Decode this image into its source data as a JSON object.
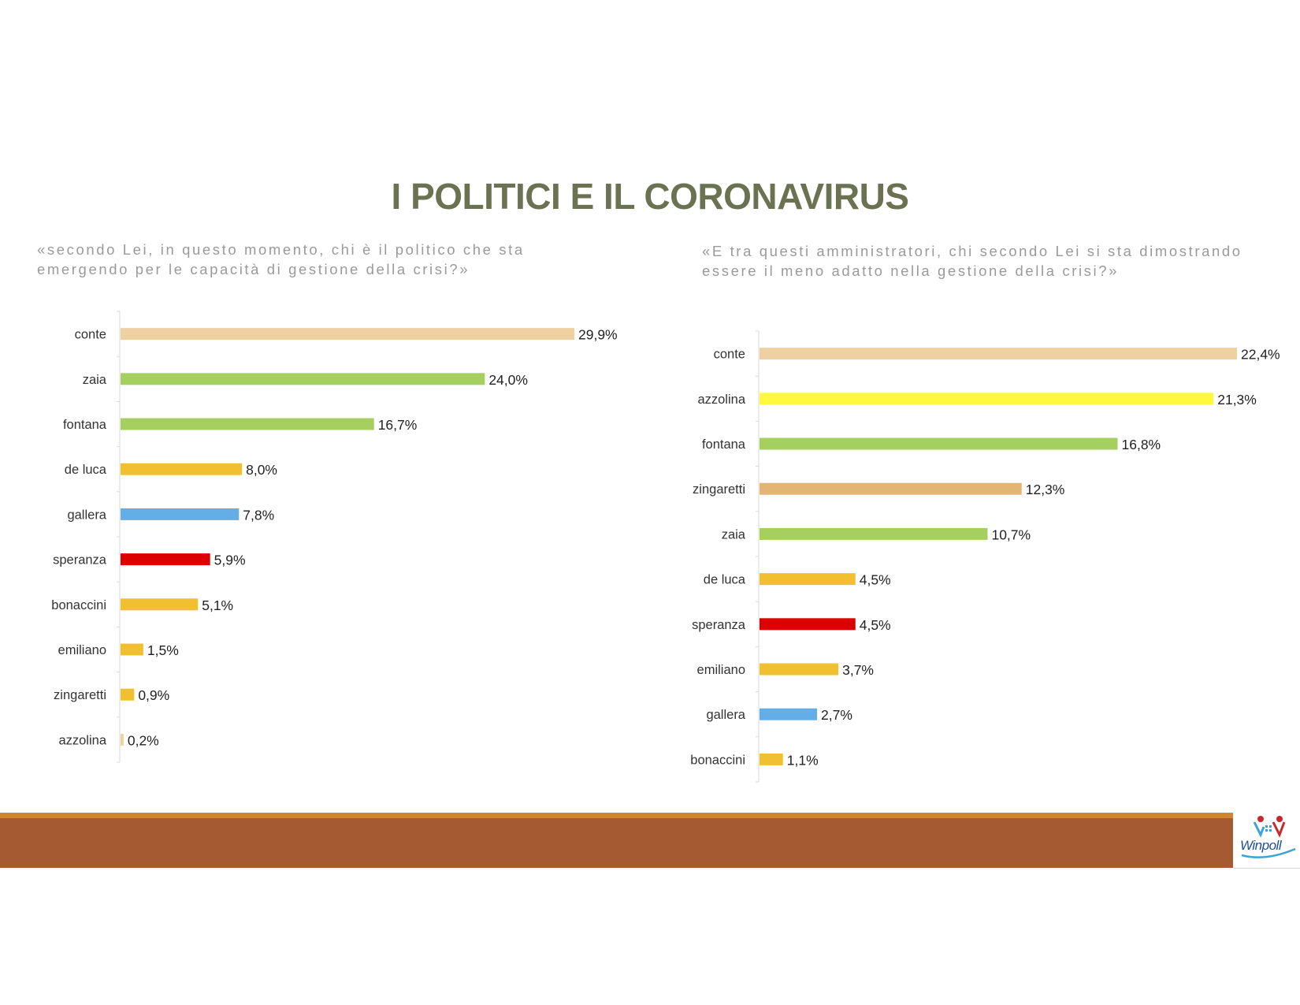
{
  "title": "I POLITICI E IL CORONAVIRUS",
  "logo": {
    "text": "Winpoll"
  },
  "chart_data": [
    {
      "type": "bar",
      "orientation": "horizontal",
      "question": "«secondo Lei, in questo momento, chi è il politico che sta emergendo per le capacità di gestione della crisi?»",
      "question_lines": [
        "«secondo Lei, in questo momento, chi è il politico che sta",
        "emergendo per le capacità di gestione della crisi?»"
      ],
      "categories": [
        "conte",
        "zaia",
        "fontana",
        "de luca",
        "gallera",
        "speranza",
        "bonaccini",
        "emiliano",
        "zingaretti",
        "azzolina"
      ],
      "values": [
        29.9,
        24.0,
        16.7,
        8.0,
        7.8,
        5.9,
        5.1,
        1.5,
        0.9,
        0.2
      ],
      "value_labels": [
        "29,9%",
        "24,0%",
        "16,7%",
        "8,0%",
        "7,8%",
        "5,9%",
        "5,1%",
        "1,5%",
        "0,9%",
        "0,2%"
      ],
      "colors": [
        "#efd0a2",
        "#a5cf5e",
        "#a5cf5e",
        "#f0c030",
        "#64aee8",
        "#dd0000",
        "#f0c030",
        "#f0c030",
        "#f0c030",
        "#efd0a2"
      ],
      "unit": "%",
      "xlim": [
        0,
        29.9
      ],
      "grid": false,
      "legend": "none"
    },
    {
      "type": "bar",
      "orientation": "horizontal",
      "question": "«E tra questi amministratori, chi secondo Lei si sta dimostrando essere il meno adatto nella gestione della crisi?»",
      "question_lines": [
        "«E tra questi amministratori, chi secondo Lei si sta dimostrando",
        "essere il meno adatto nella gestione della crisi?»"
      ],
      "categories": [
        "conte",
        "azzolina",
        "fontana",
        "zingaretti",
        "zaia",
        "de luca",
        "speranza",
        "emiliano",
        "gallera",
        "bonaccini"
      ],
      "values": [
        22.4,
        21.3,
        16.8,
        12.3,
        10.7,
        4.5,
        4.5,
        3.7,
        2.7,
        1.1
      ],
      "value_labels": [
        "22,4%",
        "21,3%",
        "16,8%",
        "12,3%",
        "10,7%",
        "4,5%",
        "4,5%",
        "3,7%",
        "2,7%",
        "1,1%"
      ],
      "colors": [
        "#efd0a2",
        "#fff83f",
        "#a5cf5e",
        "#e3b574",
        "#a5cf5e",
        "#f0c030",
        "#dd0000",
        "#f0c030",
        "#64aee8",
        "#f0c030"
      ],
      "unit": "%",
      "xlim": [
        0,
        22.4
      ],
      "grid": false,
      "legend": "none"
    }
  ]
}
